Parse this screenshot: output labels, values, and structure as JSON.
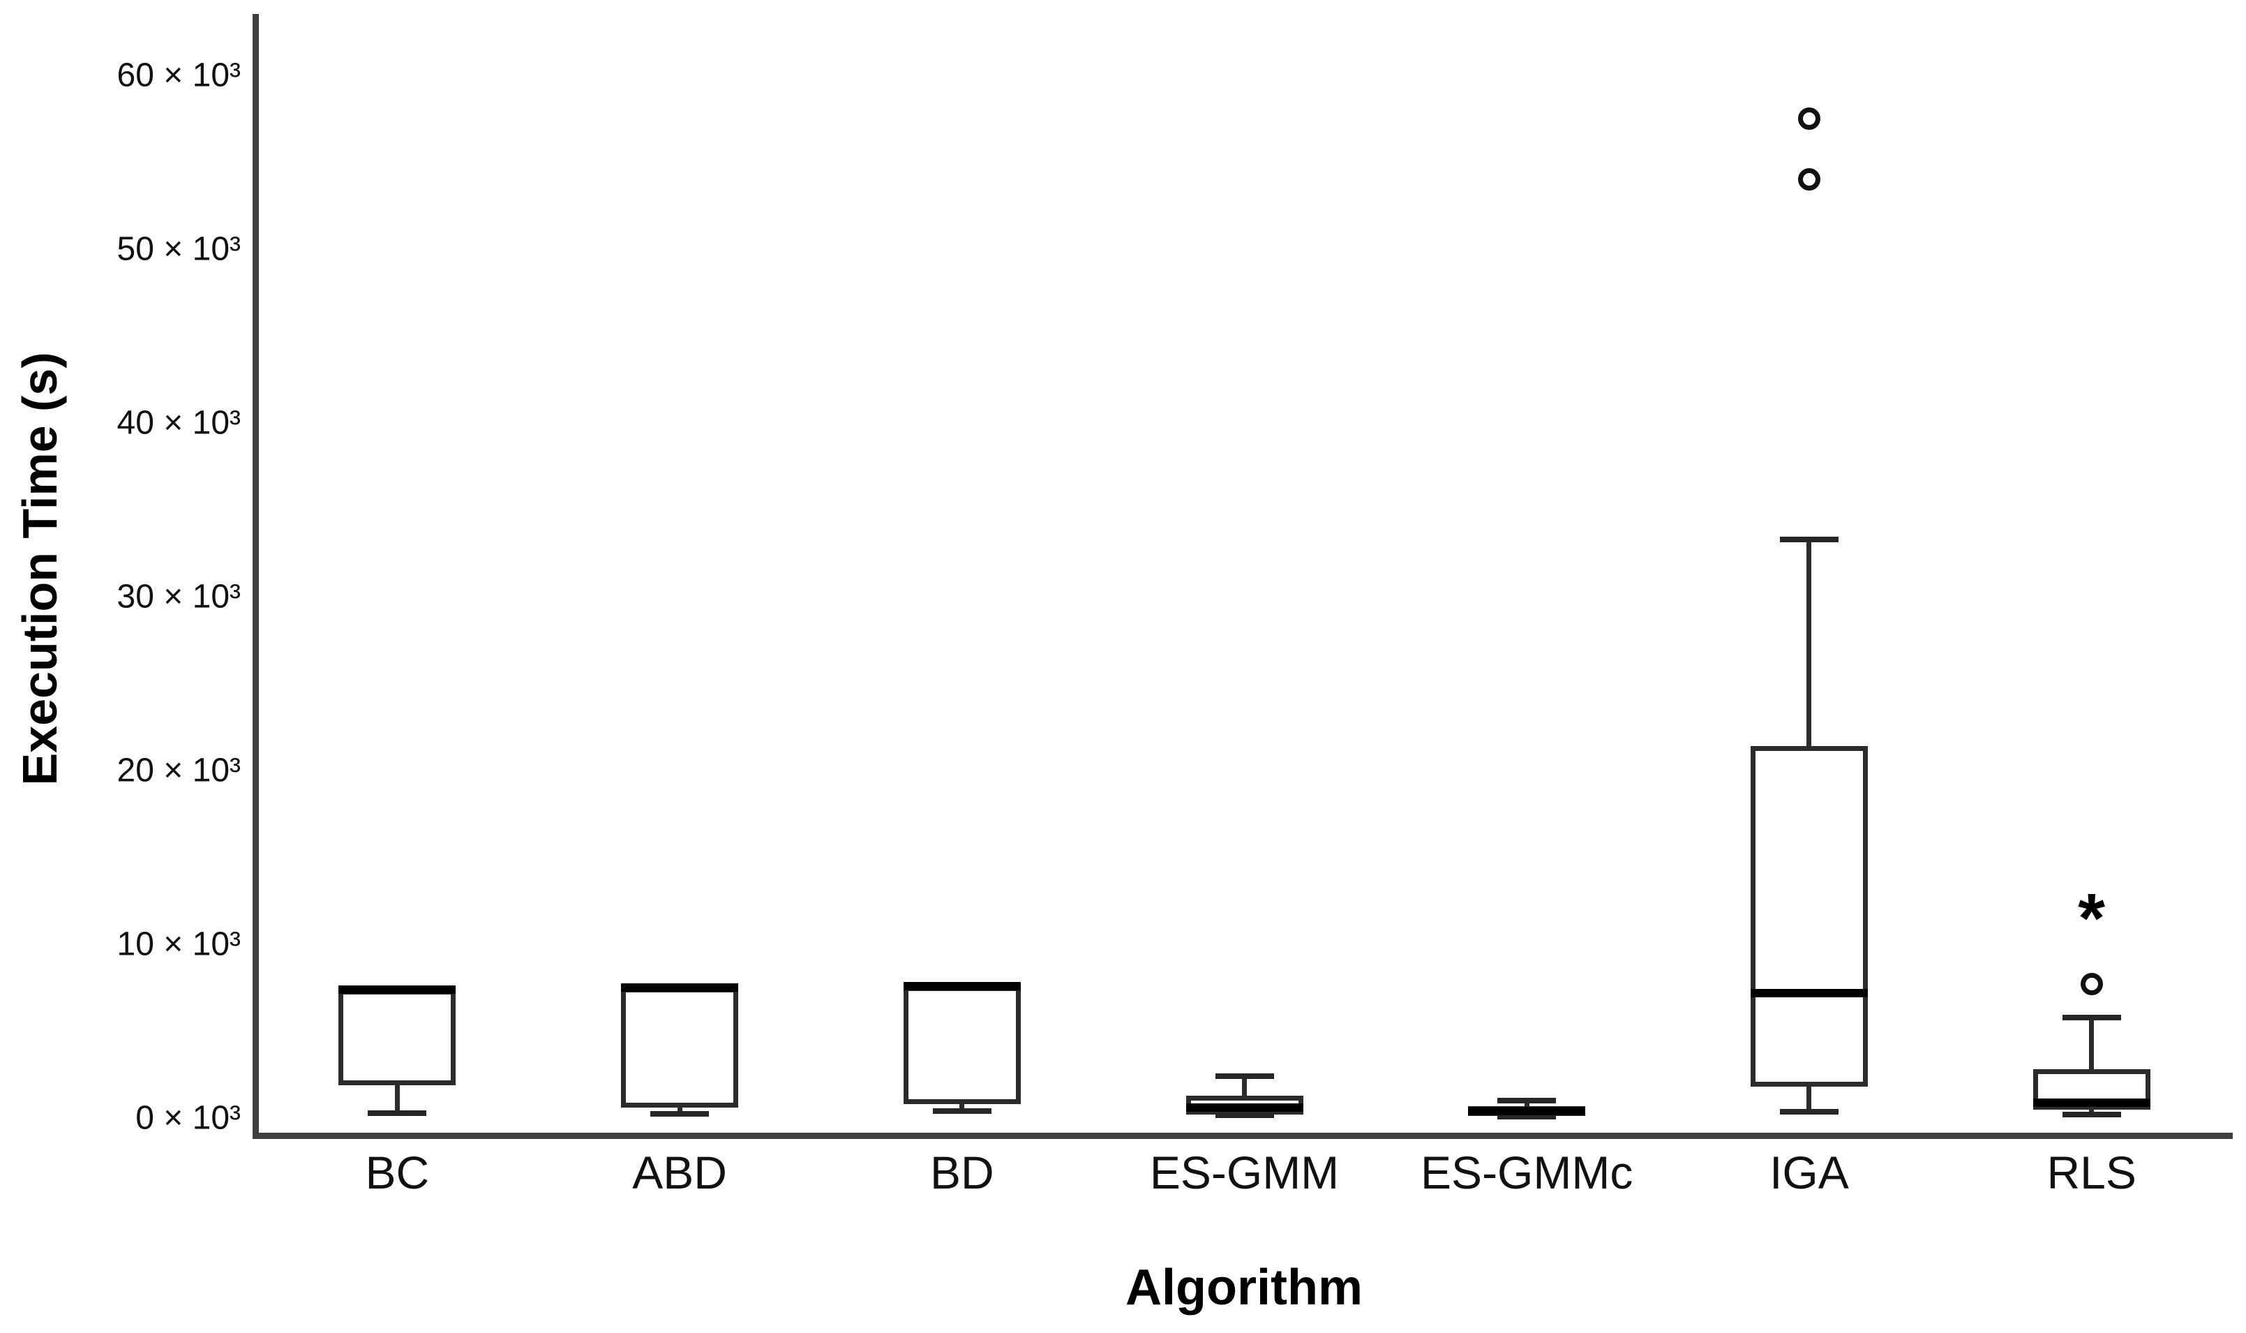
{
  "colors": {
    "background": "#ffffff",
    "axis_line": "#3f3f3f",
    "box_border": "#2b2b2b",
    "median_line": "#000000",
    "text": "#111111"
  },
  "chart_data": {
    "type": "boxplot",
    "title": "",
    "xlabel": "Algorithm",
    "ylabel": "Execution Time (s)",
    "ylim": [
      0,
      64000
    ],
    "grid": false,
    "legend": "none",
    "y_tick_values": [
      0,
      10000,
      20000,
      30000,
      40000,
      50000,
      60000
    ],
    "y_tick_labels": [
      "0 × 10³",
      "10 × 10³",
      "20 × 10³",
      "30 × 10³",
      "40 × 10³",
      "50 × 10³",
      "60 × 10³"
    ],
    "categories": [
      "BC",
      "ABD",
      "BD",
      "ES-GMM",
      "ES-GMMc",
      "IGA",
      "RLS"
    ],
    "series": [
      {
        "category": "BC",
        "q1": 1900,
        "median": 7400,
        "q3": 7400,
        "whisker_low": 300,
        "whisker_high": null,
        "outliers": [],
        "extremes": []
      },
      {
        "category": "ABD",
        "q1": 600,
        "median": 7500,
        "q3": 7500,
        "whisker_low": 250,
        "whisker_high": null,
        "outliers": [],
        "extremes": []
      },
      {
        "category": "BD",
        "q1": 800,
        "median": 7600,
        "q3": 7600,
        "whisker_low": 400,
        "whisker_high": null,
        "outliers": [],
        "extremes": []
      },
      {
        "category": "ES-GMM",
        "q1": 200,
        "median": 600,
        "q3": 1300,
        "whisker_low": 150,
        "whisker_high": 2400,
        "outliers": [],
        "extremes": []
      },
      {
        "category": "ES-GMMc",
        "q1": 150,
        "median": 400,
        "q3": 700,
        "whisker_low": 100,
        "whisker_high": 1000,
        "outliers": [],
        "extremes": []
      },
      {
        "category": "IGA",
        "q1": 1800,
        "median": 7200,
        "q3": 21400,
        "whisker_low": 350,
        "whisker_high": 33300,
        "outliers": [
          54000,
          57500
        ],
        "extremes": []
      },
      {
        "category": "RLS",
        "q1": 500,
        "median": 900,
        "q3": 2800,
        "whisker_low": 200,
        "whisker_high": 5800,
        "outliers": [
          7700
        ],
        "extremes": [
          12100
        ]
      }
    ]
  }
}
